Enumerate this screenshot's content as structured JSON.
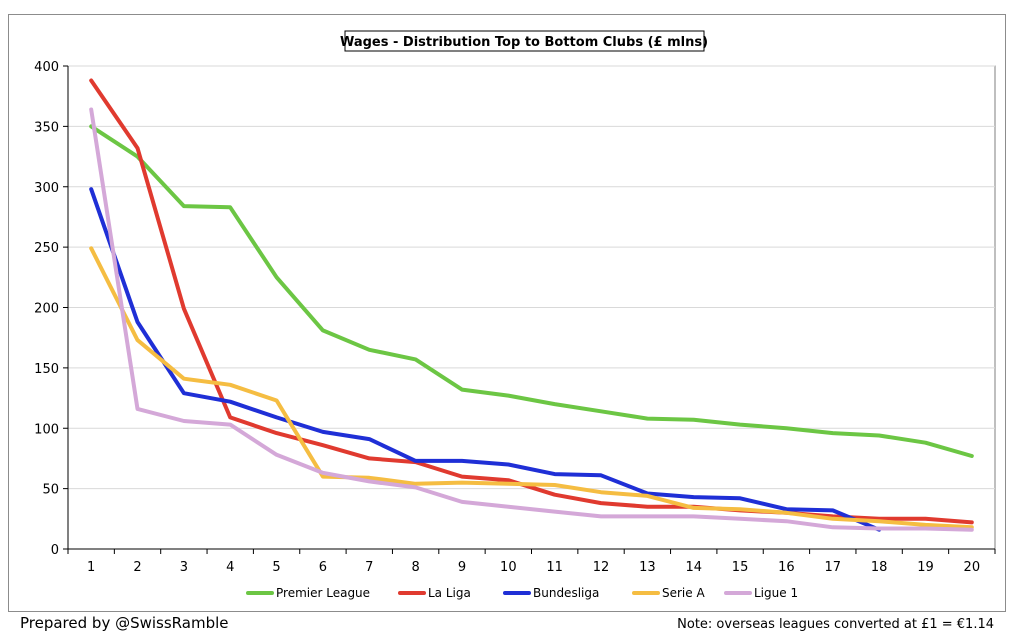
{
  "chart_data": {
    "type": "line",
    "title": "Wages - Distribution Top to Bottom Clubs (£ mlns)",
    "xlabel": "",
    "ylabel": "",
    "x": [
      1,
      2,
      3,
      4,
      5,
      6,
      7,
      8,
      9,
      10,
      11,
      12,
      13,
      14,
      15,
      16,
      17,
      18,
      19,
      20
    ],
    "x_tick_labels": [
      "1",
      "2",
      "3",
      "4",
      "5",
      "6",
      "7",
      "8",
      "9",
      "10",
      "11",
      "12",
      "13",
      "14",
      "15",
      "16",
      "17",
      "18",
      "19",
      "20"
    ],
    "ylim": [
      0,
      400
    ],
    "y_ticks": [
      0,
      50,
      100,
      150,
      200,
      250,
      300,
      350,
      400
    ],
    "y_tick_labels": [
      "0",
      "50",
      "100",
      "150",
      "200",
      "250",
      "300",
      "350",
      "400"
    ],
    "grid": "horizontal",
    "legend_position": "bottom",
    "series": [
      {
        "name": "Premier League",
        "color": "#6cc644",
        "values": [
          350,
          325,
          284,
          283,
          225,
          181,
          165,
          157,
          132,
          127,
          120,
          114,
          108,
          107,
          103,
          100,
          96,
          94,
          88,
          77
        ]
      },
      {
        "name": "La Liga",
        "color": "#e03a2f",
        "values": [
          388,
          332,
          199,
          109,
          96,
          86,
          75,
          72,
          60,
          57,
          45,
          38,
          35,
          35,
          32,
          30,
          27,
          25,
          25,
          22
        ]
      },
      {
        "name": "Bundesliga",
        "color": "#1f2fd6",
        "values": [
          298,
          188,
          129,
          122,
          109,
          97,
          91,
          73,
          73,
          70,
          62,
          61,
          46,
          43,
          42,
          33,
          32,
          16,
          null,
          null
        ]
      },
      {
        "name": "Serie A",
        "color": "#f5bd42",
        "values": [
          249,
          173,
          141,
          136,
          123,
          60,
          59,
          54,
          55,
          54,
          53,
          47,
          44,
          34,
          33,
          30,
          25,
          23,
          20,
          18
        ]
      },
      {
        "name": "Ligue 1",
        "color": "#d4a8d8",
        "values": [
          364,
          116,
          106,
          103,
          78,
          63,
          56,
          51,
          39,
          35,
          31,
          27,
          27,
          27,
          25,
          23,
          18,
          17,
          17,
          16
        ]
      }
    ]
  },
  "footer": {
    "prepared_by": "Prepared by @SwissRamble",
    "note": "Note: overseas leagues converted at £1 = €1.14"
  }
}
